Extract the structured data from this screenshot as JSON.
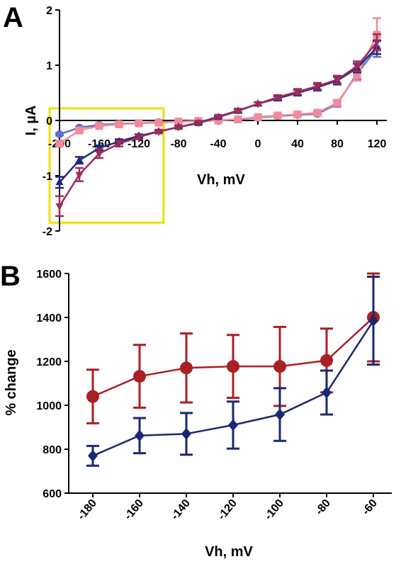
{
  "chart_data": [
    {
      "panel": "A",
      "type": "line",
      "xlabel": "Vh, mV",
      "ylabel": "I, µA",
      "xlim": [
        -200,
        130
      ],
      "ylim": [
        -2,
        2
      ],
      "x_ticks": [
        -200,
        -160,
        -120,
        -80,
        -40,
        0,
        40,
        80,
        120
      ],
      "x_tick_labels": [
        "-200",
        "-160",
        "-120",
        "-80",
        "-40",
        "0",
        "40",
        "80",
        "120"
      ],
      "y_ticks": [
        -2,
        -1,
        0,
        1,
        2
      ],
      "y_tick_labels": [
        "-2",
        "-1",
        "0",
        "1",
        "2"
      ],
      "highlight_box": {
        "x_range": [
          -210,
          -95
        ],
        "y_range": [
          -1.85,
          0.22
        ],
        "color": "#f0e000"
      },
      "series": [
        {
          "color": "#5b6fc8",
          "marker": "circle",
          "x": [
            -200,
            -180,
            -160,
            -140,
            -120,
            -100,
            -80,
            -60,
            -40,
            -20,
            0,
            20,
            40,
            60,
            80,
            100,
            120
          ],
          "y": [
            -0.25,
            -0.13,
            -0.08,
            -0.06,
            -0.05,
            -0.03,
            -0.02,
            -0.01,
            0.0,
            0.02,
            0.05,
            0.08,
            0.1,
            0.12,
            0.3,
            0.85,
            1.3
          ],
          "err": [
            0.02,
            0.02,
            0.02,
            0.02,
            0.02,
            0.01,
            0.01,
            0.01,
            0.01,
            0.01,
            0.01,
            0.02,
            0.02,
            0.03,
            0.05,
            0.1,
            0.15
          ]
        },
        {
          "color": "#f28a9a",
          "marker": "square",
          "x": [
            -200,
            -180,
            -160,
            -140,
            -120,
            -100,
            -80,
            -60,
            -40,
            -20,
            0,
            20,
            40,
            60,
            80,
            100,
            120
          ],
          "y": [
            -0.42,
            -0.18,
            -0.1,
            -0.07,
            -0.05,
            -0.04,
            -0.02,
            -0.01,
            0.0,
            0.02,
            0.06,
            0.09,
            0.11,
            0.14,
            0.32,
            0.82,
            1.55
          ],
          "err": [
            0.04,
            0.03,
            0.02,
            0.02,
            0.02,
            0.01,
            0.01,
            0.01,
            0.01,
            0.01,
            0.02,
            0.02,
            0.02,
            0.04,
            0.05,
            0.1,
            0.3
          ]
        },
        {
          "color": "#1d2a7a",
          "marker": "triangle-up",
          "x": [
            -200,
            -180,
            -160,
            -140,
            -120,
            -100,
            -80,
            -60,
            -40,
            -20,
            0,
            20,
            40,
            60,
            80,
            100,
            120
          ],
          "y": [
            -1.12,
            -0.72,
            -0.5,
            -0.38,
            -0.28,
            -0.2,
            -0.12,
            -0.05,
            0.06,
            0.17,
            0.3,
            0.4,
            0.5,
            0.6,
            0.72,
            0.95,
            1.32
          ],
          "err": [
            0.1,
            0.06,
            0.05,
            0.04,
            0.03,
            0.02,
            0.02,
            0.02,
            0.02,
            0.03,
            0.03,
            0.04,
            0.05,
            0.06,
            0.07,
            0.08,
            0.12
          ]
        },
        {
          "color": "#9e2a5c",
          "marker": "triangle-down",
          "x": [
            -200,
            -180,
            -160,
            -140,
            -120,
            -100,
            -80,
            -60,
            -40,
            -20,
            0,
            20,
            40,
            60,
            80,
            100,
            120
          ],
          "y": [
            -1.55,
            -0.98,
            -0.6,
            -0.42,
            -0.3,
            -0.2,
            -0.12,
            -0.04,
            0.07,
            0.18,
            0.3,
            0.42,
            0.52,
            0.62,
            0.74,
            0.98,
            1.42
          ],
          "err": [
            0.18,
            0.12,
            0.08,
            0.05,
            0.04,
            0.03,
            0.02,
            0.02,
            0.02,
            0.03,
            0.03,
            0.04,
            0.05,
            0.06,
            0.07,
            0.09,
            0.14
          ]
        }
      ]
    },
    {
      "panel": "B",
      "type": "line",
      "xlabel": "Vh, mV",
      "ylabel": "% change",
      "categories": [
        "-180",
        "-160",
        "-140",
        "-120",
        "-100",
        "-80",
        "-60"
      ],
      "ylim": [
        600,
        1600
      ],
      "y_ticks": [
        600,
        800,
        1000,
        1200,
        1400,
        1600
      ],
      "y_tick_labels": [
        "600",
        "800",
        "1000",
        "1200",
        "1400",
        "1600"
      ],
      "series": [
        {
          "color": "#aa1f24",
          "marker": "circle",
          "values": [
            1040,
            1132,
            1170,
            1177,
            1177,
            1204,
            1400
          ],
          "err": [
            122,
            143,
            157,
            143,
            180,
            145,
            200
          ]
        },
        {
          "color": "#1b2772",
          "marker": "diamond",
          "values": [
            770,
            862,
            870,
            910,
            958,
            1058,
            1385
          ],
          "err": [
            45,
            80,
            95,
            107,
            120,
            100,
            200
          ]
        }
      ]
    }
  ],
  "labels": {
    "panel_a": "A",
    "panel_b": "B"
  }
}
